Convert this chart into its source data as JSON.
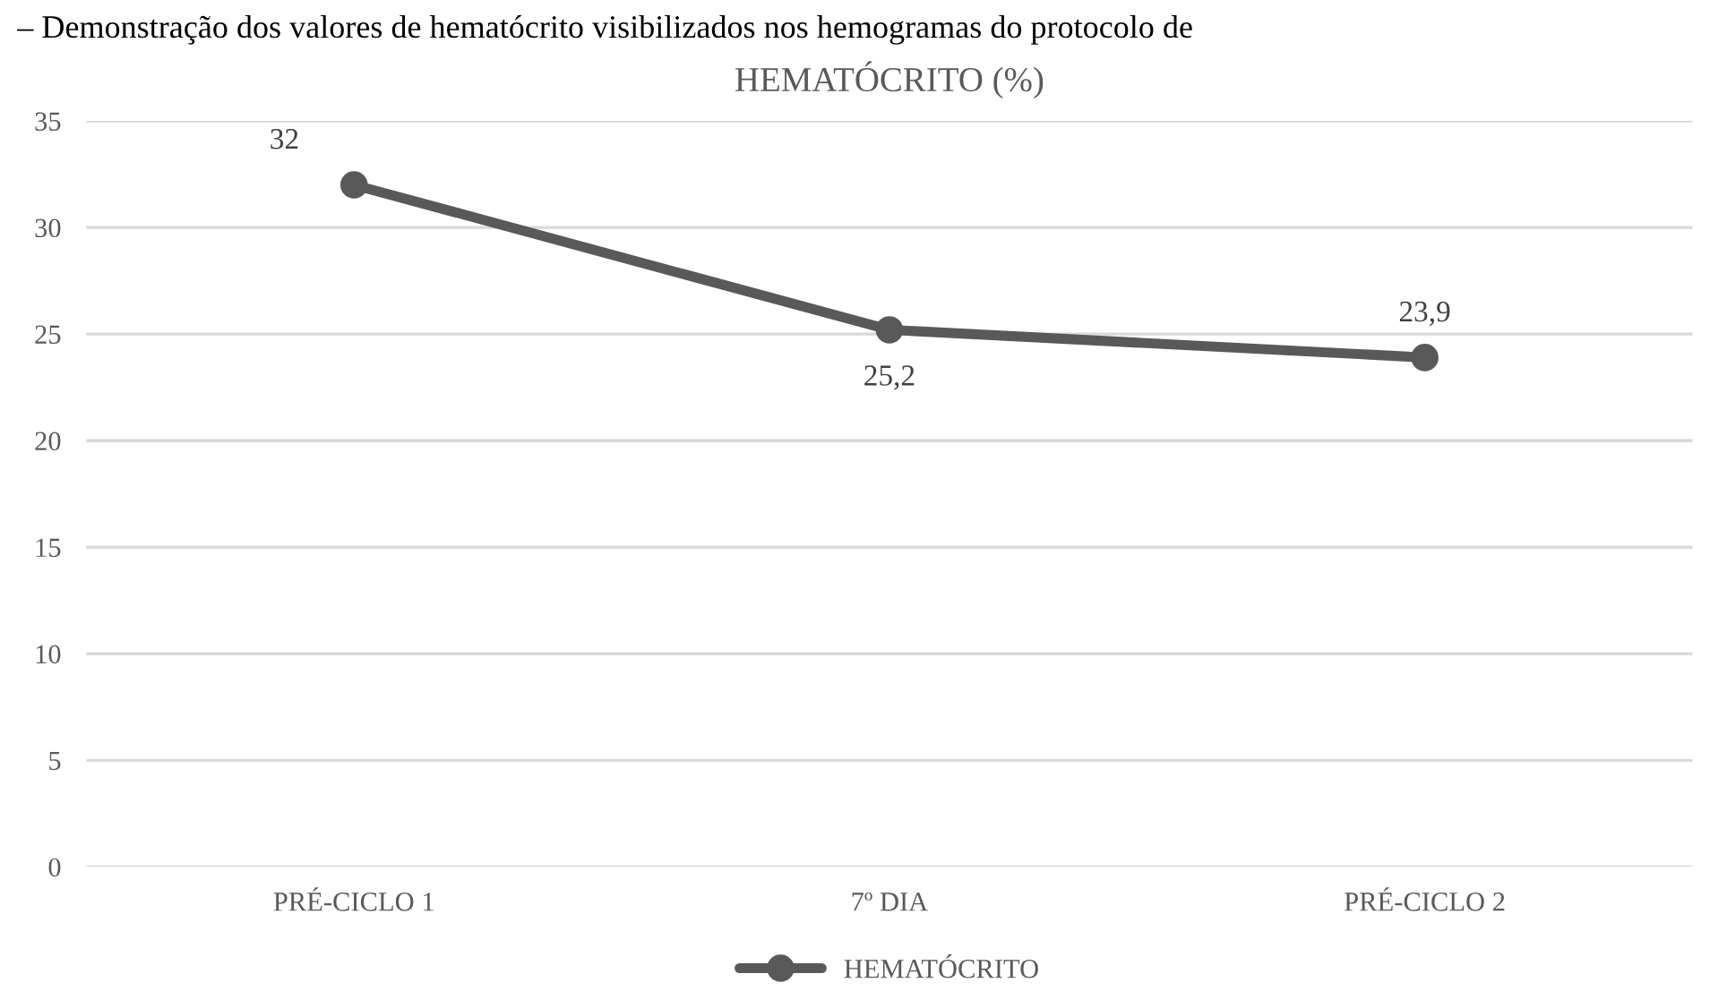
{
  "chart_data": {
    "type": "line",
    "title": "HEMATÓCRITO (%)",
    "annotations": [
      "– Demonstração dos valores de hematócrito visibilizados nos hemogramas do protocolo de"
    ],
    "categories": [
      "PRÉ-CICLO 1",
      "7º DIA",
      "PRÉ-CICLO 2"
    ],
    "series": [
      {
        "name": "HEMATÓCRITO",
        "color": "#595959",
        "values": [
          32,
          25.2,
          23.9
        ],
        "value_labels": [
          "32",
          "25,2",
          "23,9"
        ]
      }
    ],
    "ylim": [
      0,
      35
    ],
    "yticks": [
      0,
      5,
      10,
      15,
      20,
      25,
      30,
      35
    ],
    "grid": "y",
    "legend": "bottom",
    "marker": "circle",
    "line_style": "solid"
  }
}
